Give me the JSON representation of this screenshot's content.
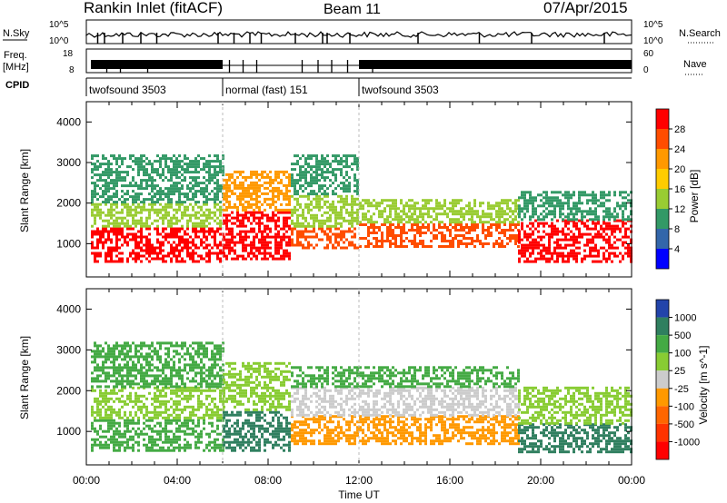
{
  "header": {
    "station": "Rankin Inlet (fitACF)",
    "beam": "Beam 11",
    "date": "07/Apr/2015"
  },
  "top_panels": {
    "nsky_label": "N.Sky",
    "nsearch_label": "N.Search",
    "nsky_ticks": [
      "10^5",
      "10^0"
    ],
    "nsearch_ticks": [
      "10^5",
      "10^0"
    ],
    "freq_label_line1": "Freq.",
    "freq_label_line2": "[MHz]",
    "freq_ticks": [
      "18",
      "8"
    ],
    "nave_label": "Nave",
    "nave_ticks": [
      "60",
      "0"
    ],
    "cpid_label": "CPID",
    "cpid_segments": [
      {
        "label": "twofsound 3503",
        "start_hour": 0.0,
        "end_hour": 6.0
      },
      {
        "label": "normal (fast) 151",
        "start_hour": 6.0,
        "end_hour": 12.0
      },
      {
        "label": "twofsound 3503",
        "start_hour": 12.0,
        "end_hour": 24.0
      }
    ]
  },
  "chart_data": [
    {
      "type": "heatmap",
      "quantity": "power",
      "ylabel": "Slant Range [km]",
      "xlabel": "",
      "xlim": [
        0,
        24
      ],
      "ylim": [
        180,
        4500
      ],
      "x_tick_labels": [
        "00:00",
        "04:00",
        "08:00",
        "12:00",
        "16:00",
        "20:00",
        "00:00"
      ],
      "y_ticks": [
        1000,
        2000,
        3000,
        4000
      ],
      "colorbar": {
        "label": "Power [dB]",
        "tick_labels": [
          "28",
          "24",
          "20",
          "16",
          "12",
          "8",
          "4"
        ],
        "colors": [
          "#ff0000",
          "#ff4d00",
          "#ff9900",
          "#ffcc00",
          "#99cc33",
          "#339966",
          "#3366aa",
          "#0000ff"
        ]
      },
      "bands": [
        {
          "t0": 0.2,
          "t1": 6.0,
          "r0": 550,
          "r1": 1400,
          "level": 28
        },
        {
          "t0": 0.2,
          "t1": 6.0,
          "r0": 1400,
          "r1": 2000,
          "level": 12
        },
        {
          "t0": 0.2,
          "t1": 6.0,
          "r0": 2000,
          "r1": 3200,
          "level": 8
        },
        {
          "t0": 6.0,
          "t1": 9.0,
          "r0": 650,
          "r1": 1800,
          "level": 28
        },
        {
          "t0": 6.0,
          "t1": 9.0,
          "r0": 1800,
          "r1": 2800,
          "level": 20
        },
        {
          "t0": 9.0,
          "t1": 12.0,
          "r0": 900,
          "r1": 1400,
          "level": 24
        },
        {
          "t0": 9.0,
          "t1": 12.0,
          "r0": 1400,
          "r1": 2200,
          "level": 12
        },
        {
          "t0": 9.0,
          "t1": 12.0,
          "r0": 2200,
          "r1": 3200,
          "level": 8
        },
        {
          "t0": 12.0,
          "t1": 19.0,
          "r0": 900,
          "r1": 1500,
          "level": 24
        },
        {
          "t0": 12.0,
          "t1": 19.0,
          "r0": 1500,
          "r1": 2100,
          "level": 12
        },
        {
          "t0": 19.0,
          "t1": 24.0,
          "r0": 550,
          "r1": 1600,
          "level": 28
        },
        {
          "t0": 19.0,
          "t1": 24.0,
          "r0": 1600,
          "r1": 2300,
          "level": 8
        }
      ]
    },
    {
      "type": "heatmap",
      "quantity": "velocity",
      "ylabel": "Slant Range [km]",
      "xlabel": "Time UT",
      "xlim": [
        0,
        24
      ],
      "ylim": [
        180,
        4500
      ],
      "x_tick_labels": [
        "00:00",
        "04:00",
        "08:00",
        "12:00",
        "16:00",
        "20:00",
        "00:00"
      ],
      "y_ticks": [
        1000,
        2000,
        3000,
        4000
      ],
      "colorbar": {
        "label": "Velocity [m s^-1]",
        "tick_labels": [
          "1000",
          "500",
          "100",
          "25",
          "-25",
          "-100",
          "-500",
          "-1000"
        ],
        "colors": [
          "#2244aa",
          "#2f7f5f",
          "#44aa44",
          "#88cc33",
          "#cccccc",
          "#ff9900",
          "#ff6600",
          "#ff3300",
          "#ff0000"
        ]
      },
      "bands": [
        {
          "t0": 0.2,
          "t1": 6.0,
          "r0": 500,
          "r1": 1300,
          "level": 100
        },
        {
          "t0": 0.2,
          "t1": 6.0,
          "r0": 1300,
          "r1": 2100,
          "level": 25
        },
        {
          "t0": 0.2,
          "t1": 6.0,
          "r0": 2100,
          "r1": 3200,
          "level": 100
        },
        {
          "t0": 6.0,
          "t1": 9.0,
          "r0": 500,
          "r1": 1500,
          "level": 500
        },
        {
          "t0": 6.0,
          "t1": 9.0,
          "r0": 1500,
          "r1": 2700,
          "level": 25
        },
        {
          "t0": 9.0,
          "t1": 19.0,
          "r0": 700,
          "r1": 1400,
          "level": -100
        },
        {
          "t0": 9.0,
          "t1": 19.0,
          "r0": 1400,
          "r1": 2100,
          "level": 0
        },
        {
          "t0": 9.0,
          "t1": 19.0,
          "r0": 2100,
          "r1": 2600,
          "level": 100
        },
        {
          "t0": 19.0,
          "t1": 24.0,
          "r0": 500,
          "r1": 1200,
          "level": 500
        },
        {
          "t0": 19.0,
          "t1": 24.0,
          "r0": 1200,
          "r1": 2100,
          "level": 25
        }
      ]
    }
  ]
}
